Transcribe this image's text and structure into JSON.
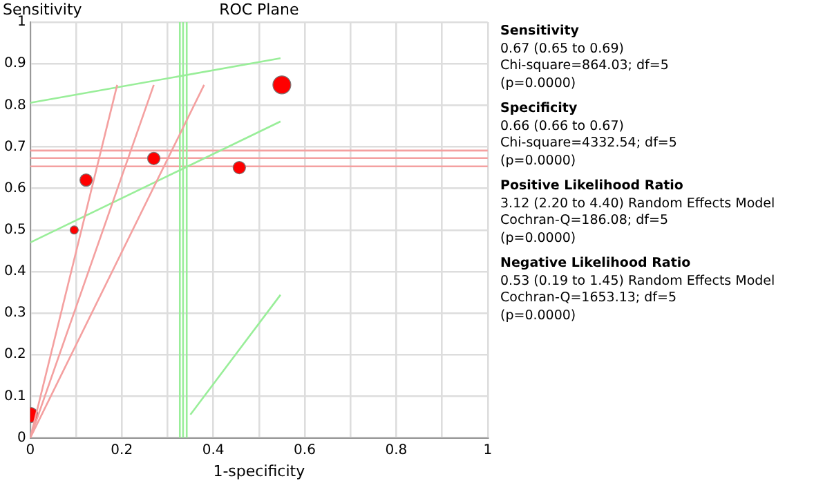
{
  "chart_data": {
    "type": "bubble",
    "title": "ROC Plane",
    "xlabel": "1-specificity",
    "ylabel": "Sensitivity",
    "xlim": [
      0,
      1
    ],
    "ylim": [
      0,
      1
    ],
    "xticks": [
      0,
      {
        "value": 0.1,
        "label": null
      },
      0.2,
      {
        "value": 0.3,
        "label": null
      },
      0.4,
      {
        "value": 0.5,
        "label": null
      },
      0.6,
      {
        "value": 0.7,
        "label": null
      },
      0.8,
      {
        "value": 0.9,
        "label": null
      },
      1
    ],
    "yticks": [
      0,
      0.1,
      0.2,
      0.3,
      0.4,
      0.5,
      0.6,
      0.7,
      0.8,
      0.9,
      1
    ],
    "grid": true,
    "legend": false,
    "series": [
      {
        "type": "line",
        "color": "#f4a0a0",
        "x": [
          0,
          0.19
        ],
        "values": [
          0,
          0.849
        ]
      },
      {
        "type": "line",
        "color": "#f4a0a0",
        "x": [
          0,
          0.27
        ],
        "values": [
          0,
          0.849
        ]
      },
      {
        "type": "line",
        "color": "#f4a0a0",
        "x": [
          0,
          0.38
        ],
        "values": [
          0,
          0.849
        ]
      },
      {
        "type": "line",
        "color": "#99ee99",
        "x": [
          0,
          0.547
        ],
        "values": [
          0.806,
          0.913
        ]
      },
      {
        "type": "line",
        "color": "#99ee99",
        "x": [
          0,
          0.547
        ],
        "values": [
          0.47,
          0.761
        ]
      },
      {
        "type": "line",
        "color": "#99ee99",
        "x": [
          0.35,
          0.547
        ],
        "values": [
          0.056,
          0.344
        ]
      },
      {
        "type": "bubble",
        "color": "#ff0000",
        "x": [
          0,
          0.096,
          0.122,
          0.27,
          0.457,
          0.55
        ],
        "values": [
          0.055,
          0.5,
          0.62,
          0.672,
          0.65,
          0.849
        ],
        "sizes": [
          0.72,
          0.21,
          0.48,
          0.48,
          0.48,
          1
        ]
      }
    ],
    "ref_lines": [
      {
        "axis": "y",
        "value": 0.653,
        "color": "#f4a0a0"
      },
      {
        "axis": "y",
        "value": 0.673,
        "color": "#f4a0a0"
      },
      {
        "axis": "y",
        "value": 0.691,
        "color": "#f4a0a0"
      },
      {
        "axis": "x",
        "value": 0.327,
        "color": "#99ee99"
      },
      {
        "axis": "x",
        "value": 0.334,
        "color": "#99ee99"
      },
      {
        "axis": "x",
        "value": 0.342,
        "color": "#99ee99"
      }
    ],
    "annotations": [
      "Sensitivity\n0.67 (0.65 to 0.69)\nChi-square=864.03; df=5\n(p=0.0000)",
      "Specificity\n0.66 (0.66 to 0.67)\nChi-square=4332.54; df=5\n(p=0.0000)",
      "Positive Likelihood Ratio\n3.12 (2.20 to 4.40) Random Effects Model\nCochran-Q=186.08; df=5\n(p=0.0000)",
      "Negative Likelihood Ratio\n0.53 (0.19 to 1.45) Random Effects Model\nCochran-Q=1653.13; df=5\n(p=0.0000)"
    ]
  }
}
